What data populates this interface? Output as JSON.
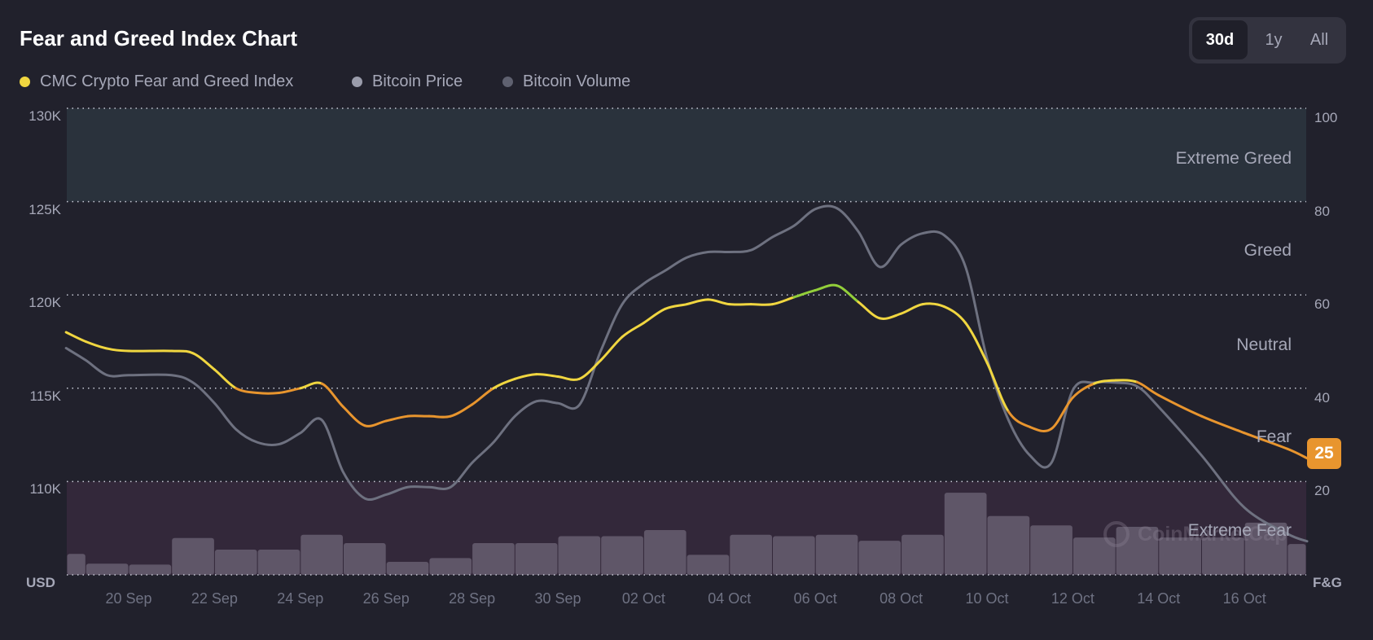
{
  "header": {
    "title": "Fear and Greed Index Chart"
  },
  "range_toggle": {
    "options": [
      "30d",
      "1y",
      "All"
    ],
    "selected": "30d"
  },
  "legend": [
    {
      "label": "CMC Crypto Fear and Greed Index",
      "color": "#f0d640"
    },
    {
      "label": "Bitcoin Price",
      "color": "#9a9cab"
    },
    {
      "label": "Bitcoin Volume",
      "color": "#5f6170"
    }
  ],
  "watermark": "CoinMarketCap",
  "chart_data": {
    "type": "line",
    "left_axis": {
      "name": "USD",
      "ticks": [
        "130K",
        "125K",
        "120K",
        "115K",
        "110K"
      ],
      "range_k": [
        105,
        130
      ]
    },
    "right_axis": {
      "name": "F&G",
      "ticks": [
        "100",
        "80",
        "60",
        "40",
        "20"
      ],
      "range": [
        0,
        100
      ]
    },
    "x_ticks": [
      "20 Sep",
      "22 Sep",
      "24 Sep",
      "26 Sep",
      "28 Sep",
      "30 Sep",
      "02 Oct",
      "04 Oct",
      "06 Oct",
      "08 Oct",
      "10 Oct",
      "12 Oct",
      "14 Oct",
      "16 Oct"
    ],
    "x_range": [
      "18 Sep 13:00",
      "17 Oct 11:00"
    ],
    "grid": true,
    "zones": [
      {
        "label": "Extreme Greed",
        "from": 80,
        "to": 100,
        "fill": "#2a323c"
      },
      {
        "label": "Greed",
        "from": 60,
        "to": 80
      },
      {
        "label": "Neutral",
        "from": 40,
        "to": 60
      },
      {
        "label": "Fear",
        "from": 20,
        "to": 40
      },
      {
        "label": "Extreme Fear",
        "from": 0,
        "to": 20,
        "fill": "#33283a"
      }
    ],
    "zone_colors": {
      "fear": "#e8952e",
      "neutral": "#f0d640",
      "greed": "#93cf3a"
    },
    "current_value": "25",
    "x": [
      "18 Sep 13:00",
      "19 Sep 00:00",
      "19 Sep 12:00",
      "20 Sep 00:00",
      "21 Sep 00:00",
      "21 Sep 12:00",
      "22 Sep 00:00",
      "22 Sep 12:00",
      "23 Sep 00:00",
      "23 Sep 12:00",
      "24 Sep 00:00",
      "24 Sep 12:00",
      "25 Sep 00:00",
      "25 Sep 12:00",
      "26 Sep 00:00",
      "26 Sep 12:00",
      "27 Sep 00:00",
      "27 Sep 12:00",
      "28 Sep 00:00",
      "28 Sep 12:00",
      "29 Sep 00:00",
      "29 Sep 12:00",
      "30 Sep 00:00",
      "30 Sep 12:00",
      "01 Oct 00:00",
      "01 Oct 12:00",
      "02 Oct 00:00",
      "02 Oct 12:00",
      "03 Oct 00:00",
      "03 Oct 12:00",
      "04 Oct 00:00",
      "04 Oct 12:00",
      "05 Oct 00:00",
      "05 Oct 12:00",
      "06 Oct 00:00",
      "06 Oct 12:00",
      "07 Oct 00:00",
      "07 Oct 12:00",
      "08 Oct 00:00",
      "08 Oct 12:00",
      "09 Oct 00:00",
      "09 Oct 12:00",
      "10 Oct 00:00",
      "10 Oct 12:00",
      "11 Oct 00:00",
      "11 Oct 12:00",
      "12 Oct 00:00",
      "12 Oct 12:00",
      "13 Oct 00:00",
      "13 Oct 12:00",
      "14 Oct 00:00",
      "15 Oct 00:00",
      "16 Oct 00:00",
      "17 Oct 00:00",
      "17 Oct 11:00"
    ],
    "series": [
      {
        "name": "CMC Crypto Fear and Greed Index",
        "axis": "right",
        "values": [
          52,
          50,
          48.5,
          48,
          48,
          47.5,
          44,
          40,
          39,
          39,
          40,
          41,
          36,
          32,
          33,
          34,
          34,
          34,
          36.5,
          40,
          42,
          43,
          42.5,
          42,
          46,
          51,
          54,
          57,
          58,
          59,
          58,
          58,
          58,
          59.5,
          61,
          62,
          58.5,
          55,
          56,
          58,
          57.5,
          54,
          45.5,
          35,
          31.7,
          31.3,
          38,
          41,
          41.7,
          41.3,
          38.5,
          34,
          30.4,
          27,
          25
        ]
      },
      {
        "name": "Bitcoin Price",
        "axis": "left",
        "unit": "K USD",
        "color": "#6e7180",
        "values": [
          117.15,
          116.5,
          115.7,
          115.7,
          115.7,
          115.3,
          114.2,
          112.8,
          112.1,
          112.0,
          112.6,
          113.3,
          110.5,
          109.1,
          109.3,
          109.7,
          109.7,
          109.7,
          111.0,
          112.1,
          113.5,
          114.3,
          114.2,
          114.1,
          117.0,
          119.5,
          120.6,
          121.3,
          122.0,
          122.3,
          122.3,
          122.4,
          123.1,
          123.7,
          124.6,
          124.65,
          123.4,
          121.5,
          122.7,
          123.3,
          123.2,
          121.5,
          116.6,
          113.3,
          111.4,
          111.0,
          114.9,
          115.3,
          115.3,
          115.1,
          114.0,
          111.4,
          108.6,
          107.2,
          106.8
        ]
      }
    ],
    "volume": {
      "name": "Bitcoin Volume",
      "color": "#5f5668",
      "scale": "relative, no axis",
      "dates": [
        "18 Sep",
        "19 Sep",
        "20 Sep",
        "21 Sep",
        "22 Sep",
        "23 Sep",
        "24 Sep",
        "25 Sep",
        "26 Sep",
        "27 Sep",
        "28 Sep",
        "29 Sep",
        "30 Sep",
        "01 Oct",
        "02 Oct",
        "03 Oct",
        "04 Oct",
        "05 Oct",
        "06 Oct",
        "07 Oct",
        "08 Oct",
        "09 Oct",
        "10 Oct",
        "11 Oct",
        "12 Oct",
        "13 Oct",
        "14 Oct",
        "15 Oct",
        "16 Oct",
        "17 Oct"
      ],
      "relative_values": [
        4.5,
        2.4,
        2.2,
        7.9,
        5.4,
        5.4,
        8.6,
        6.8,
        2.8,
        3.6,
        6.8,
        6.8,
        8.3,
        8.3,
        9.6,
        4.3,
        8.6,
        8.3,
        8.6,
        7.3,
        8.6,
        17.6,
        12.6,
        10.6,
        8.0,
        10.3,
        8.0,
        8.0,
        11.2,
        6.6
      ]
    }
  }
}
